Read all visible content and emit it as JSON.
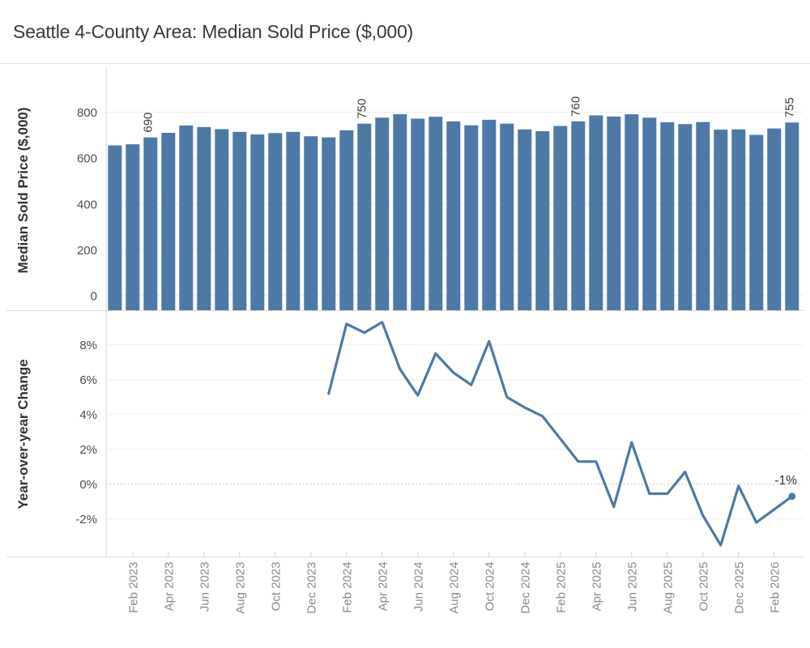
{
  "title": "Seattle 4-County Area: Median Sold Price ($,000)",
  "colors": {
    "bar": "#4e79a7",
    "line": "#4e79a7",
    "grid": "#ededed",
    "zero_grid": "#e4e4e4",
    "zero_dotted": "#b3b3b3",
    "axis_line": "#d9d9d9",
    "tick_label": "#4f4f4f",
    "month_label": "#8a8a8a",
    "axis_title": "#333333",
    "annotation": "#3f3f3f"
  },
  "x_axis": {
    "tick_labels": [
      "Feb 2023",
      "Apr 2023",
      "Jun 2023",
      "Aug 2023",
      "Oct 2023",
      "Dec 2023",
      "Feb 2024",
      "Apr 2024",
      "Jun 2024",
      "Aug 2024",
      "Oct 2024",
      "Dec 2024",
      "Feb 2025",
      "Apr 2025",
      "Jun 2025",
      "Aug 2025",
      "Oct 2025",
      "Dec 2025",
      "Feb 2026"
    ]
  },
  "chart_data": [
    {
      "type": "bar",
      "title": "Seattle 4-County Area: Median Sold Price ($,000)",
      "ylabel": "Median Sold Price ($,000)",
      "ylim": [
        0,
        900
      ],
      "yticks": [
        0,
        200,
        400,
        600,
        800
      ],
      "grid": true,
      "categories": [
        "Jan 2023",
        "Feb 2023",
        "Mar 2023",
        "Apr 2023",
        "May 2023",
        "Jun 2023",
        "Jul 2023",
        "Aug 2023",
        "Sep 2023",
        "Oct 2023",
        "Nov 2023",
        "Dec 2023",
        "Jan 2024",
        "Feb 2024",
        "Mar 2024",
        "Apr 2024",
        "May 2024",
        "Jun 2024",
        "Jul 2024",
        "Aug 2024",
        "Sep 2024",
        "Oct 2024",
        "Nov 2024",
        "Dec 2024",
        "Jan 2025",
        "Feb 2025",
        "Mar 2025",
        "Apr 2025",
        "May 2025",
        "Jun 2025",
        "Jul 2025",
        "Aug 2025",
        "Sep 2025",
        "Oct 2025",
        "Nov 2025",
        "Dec 2025",
        "Jan 2026",
        "Feb 2026",
        "Mar 2026"
      ],
      "values": [
        655,
        660,
        690,
        710,
        742,
        735,
        726,
        714,
        703,
        709,
        714,
        695,
        690,
        721,
        750,
        776,
        791,
        772,
        780,
        760,
        743,
        767,
        750,
        725,
        717,
        740,
        760,
        786,
        781,
        791,
        776,
        756,
        748,
        757,
        724,
        725,
        701,
        729,
        755
      ],
      "bar_labels": [
        {
          "category": "Mar 2023",
          "label": "690"
        },
        {
          "category": "Mar 2024",
          "label": "750"
        },
        {
          "category": "Mar 2025",
          "label": "760"
        },
        {
          "category": "Mar 2026",
          "label": "755"
        }
      ]
    },
    {
      "type": "line",
      "ylabel": "Year-over-year Change",
      "ylim": [
        -4.2,
        10
      ],
      "yticks": [
        8,
        6,
        4,
        2,
        0,
        -2
      ],
      "ytick_labels": [
        "8%",
        "6%",
        "4%",
        "2%",
        "0%",
        "-2%"
      ],
      "grid": true,
      "zero_line_style": "dotted",
      "categories": [
        "Jan 2024",
        "Feb 2024",
        "Mar 2024",
        "Apr 2024",
        "May 2024",
        "Jun 2024",
        "Jul 2024",
        "Aug 2024",
        "Sep 2024",
        "Oct 2024",
        "Nov 2024",
        "Dec 2024",
        "Jan 2025",
        "Feb 2025",
        "Mar 2025",
        "Apr 2025",
        "May 2025",
        "Jun 2025",
        "Jul 2025",
        "Aug 2025",
        "Sep 2025",
        "Oct 2025",
        "Nov 2025",
        "Dec 2025",
        "Jan 2026",
        "Feb 2026",
        "Mar 2026"
      ],
      "values": [
        5.2,
        9.2,
        8.7,
        9.3,
        6.6,
        5.1,
        7.5,
        6.4,
        5.7,
        8.2,
        5.0,
        4.4,
        3.9,
        2.6,
        1.3,
        1.3,
        -1.3,
        2.4,
        -0.55,
        -0.55,
        0.7,
        -1.8,
        -3.5,
        -0.1,
        -2.2,
        -1.45,
        -0.7
      ],
      "end_point_label": "-1%"
    }
  ]
}
